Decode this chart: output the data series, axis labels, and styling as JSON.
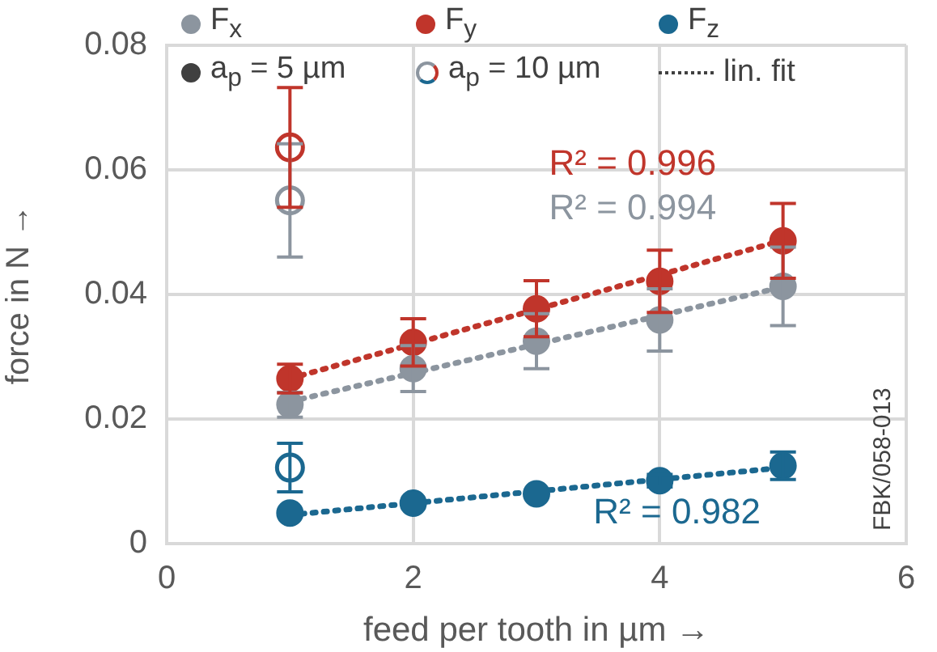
{
  "chart_data": {
    "type": "scatter",
    "xlabel": "feed per tooth in µm →",
    "ylabel": "force in N →",
    "xlim": [
      0,
      6
    ],
    "xticks": [
      0,
      2,
      4,
      6
    ],
    "ylim": [
      0,
      0.08
    ],
    "yticks": [
      0,
      0.02,
      0.04,
      0.06,
      0.08
    ],
    "grid": true,
    "legend": "top",
    "series": [
      {
        "name": "F$_{x}$",
        "color": "#8c959f",
        "marker": "circle",
        "x": [
          1,
          2,
          3,
          4,
          5
        ],
        "values": [
          0.0223,
          0.0281,
          0.0325,
          0.0359,
          0.0413
        ],
        "errors": [
          0.002,
          0.0037,
          0.0044,
          0.005,
          0.0063
        ]
      },
      {
        "name": "F$_{y}$",
        "color": "#c0352b",
        "marker": "circle",
        "x": [
          1,
          2,
          3,
          4,
          5
        ],
        "values": [
          0.0265,
          0.0323,
          0.0377,
          0.0421,
          0.0486
        ],
        "errors": [
          0.0023,
          0.0038,
          0.0045,
          0.005,
          0.006
        ]
      },
      {
        "name": "F$_{z}$",
        "color": "#1b6890",
        "marker": "circle",
        "x": [
          1,
          2,
          3,
          4,
          5
        ],
        "values": [
          0.0049,
          0.0065,
          0.008,
          0.0101,
          0.0125
        ],
        "errors": [
          null,
          null,
          null,
          0.001,
          0.0022
        ]
      },
      {
        "name": "a$_{p}$ = 5 µm",
        "color": "#404040",
        "marker": "circle"
      },
      {
        "name": "a$_{p}$ = 10 µm",
        "colors": [
          "#8c959f",
          "#c0352b",
          "#1b6890"
        ],
        "marker": "circle",
        "x": [
          1,
          1,
          1
        ],
        "values": [
          0.0551,
          0.0636,
          0.0122
        ],
        "errors": [
          0.0091,
          0.0096,
          0.0039
        ]
      },
      {
        "name": "lin. fit",
        "type": "line",
        "color": "#404040",
        "line_style": "dotted"
      },
      {
        "type": "line",
        "color": "#c0352b",
        "line_style": "dotted",
        "x": [
          1,
          5
        ],
        "values": [
          0.0265,
          0.0487
        ]
      },
      {
        "type": "line",
        "color": "#8c959f",
        "line_style": "dotted",
        "x": [
          1,
          5
        ],
        "values": [
          0.0228,
          0.0412
        ]
      },
      {
        "type": "line",
        "color": "#1b6890",
        "line_style": "dotted",
        "x": [
          1,
          5
        ],
        "values": [
          0.0046,
          0.0122
        ]
      }
    ],
    "annotations": [
      "R² = 0.996",
      "R² = 0.994",
      "R² = 0.982",
      "FBK/058-013"
    ]
  }
}
